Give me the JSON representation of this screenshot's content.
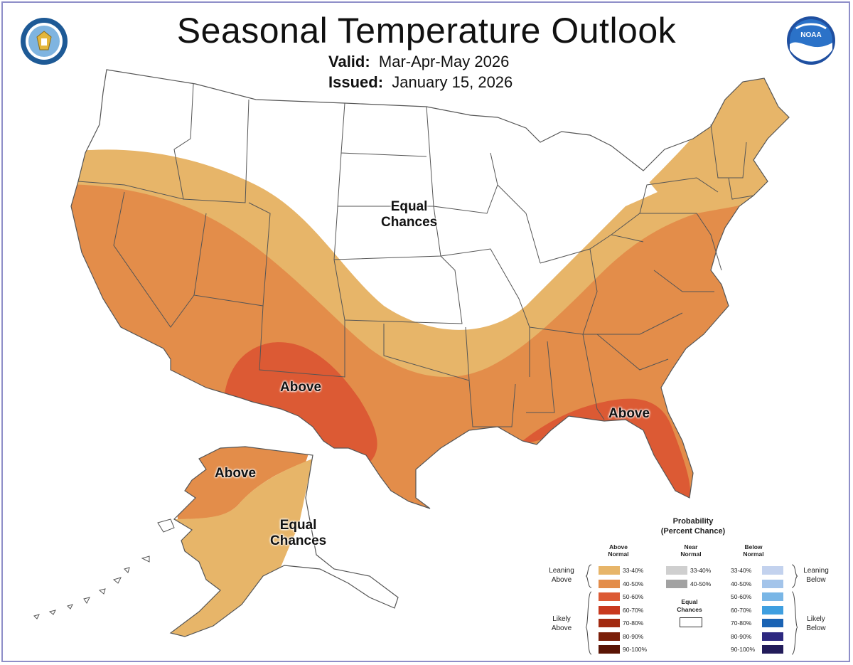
{
  "header": {
    "title": "Seasonal Temperature Outlook",
    "valid_label": "Valid:",
    "valid_value": "Mar-Apr-May 2026",
    "issued_label": "Issued:",
    "issued_value": "January 15, 2026"
  },
  "logos": {
    "left": "doc-seal-icon",
    "right": "noaa-logo-icon"
  },
  "map": {
    "labels": {
      "equal_chances_conus": [
        "Equal",
        "Chances"
      ],
      "above_southwest": "Above",
      "above_florida": "Above",
      "above_alaska": "Above",
      "equal_chances_alaska": [
        "Equal",
        "Chances"
      ]
    },
    "colors": {
      "above_33_40": "#e7b569",
      "above_40_50": "#e38d4a",
      "above_50_60": "#dc5a34",
      "land": "#ffffff",
      "border": "#555555"
    }
  },
  "legend": {
    "title": [
      "Probability",
      "(Percent Chance)"
    ],
    "columns": {
      "above": [
        "Above",
        "Normal"
      ],
      "near": [
        "Near",
        "Normal"
      ],
      "below": [
        "Below",
        "Normal"
      ]
    },
    "above_rows": [
      {
        "label": "33-40%",
        "color": "#e7b569"
      },
      {
        "label": "40-50%",
        "color": "#e38d4a"
      },
      {
        "label": "50-60%",
        "color": "#dc5a34"
      },
      {
        "label": "60-70%",
        "color": "#c8391e"
      },
      {
        "label": "70-80%",
        "color": "#a22a10"
      },
      {
        "label": "80-90%",
        "color": "#7a1e08"
      },
      {
        "label": "90-100%",
        "color": "#5a1404"
      }
    ],
    "near_rows": [
      {
        "label": "33-40%",
        "color": "#cfcfcf"
      },
      {
        "label": "40-50%",
        "color": "#a2a2a2"
      }
    ],
    "below_rows": [
      {
        "label": "33-40%",
        "color": "#c3d2ee"
      },
      {
        "label": "40-50%",
        "color": "#a3c4ea"
      },
      {
        "label": "50-60%",
        "color": "#79b6e6"
      },
      {
        "label": "60-70%",
        "color": "#3f9fe0"
      },
      {
        "label": "70-80%",
        "color": "#1a63b4"
      },
      {
        "label": "80-90%",
        "color": "#2d2880"
      },
      {
        "label": "90-100%",
        "color": "#221c5a"
      }
    ],
    "equal_chances": [
      "Equal",
      "Chances"
    ],
    "side_labels": {
      "leaning_above": [
        "Leaning",
        "Above"
      ],
      "likely_above": [
        "Likely",
        "Above"
      ],
      "leaning_below": [
        "Leaning",
        "Below"
      ],
      "likely_below": [
        "Likely",
        "Below"
      ]
    }
  }
}
